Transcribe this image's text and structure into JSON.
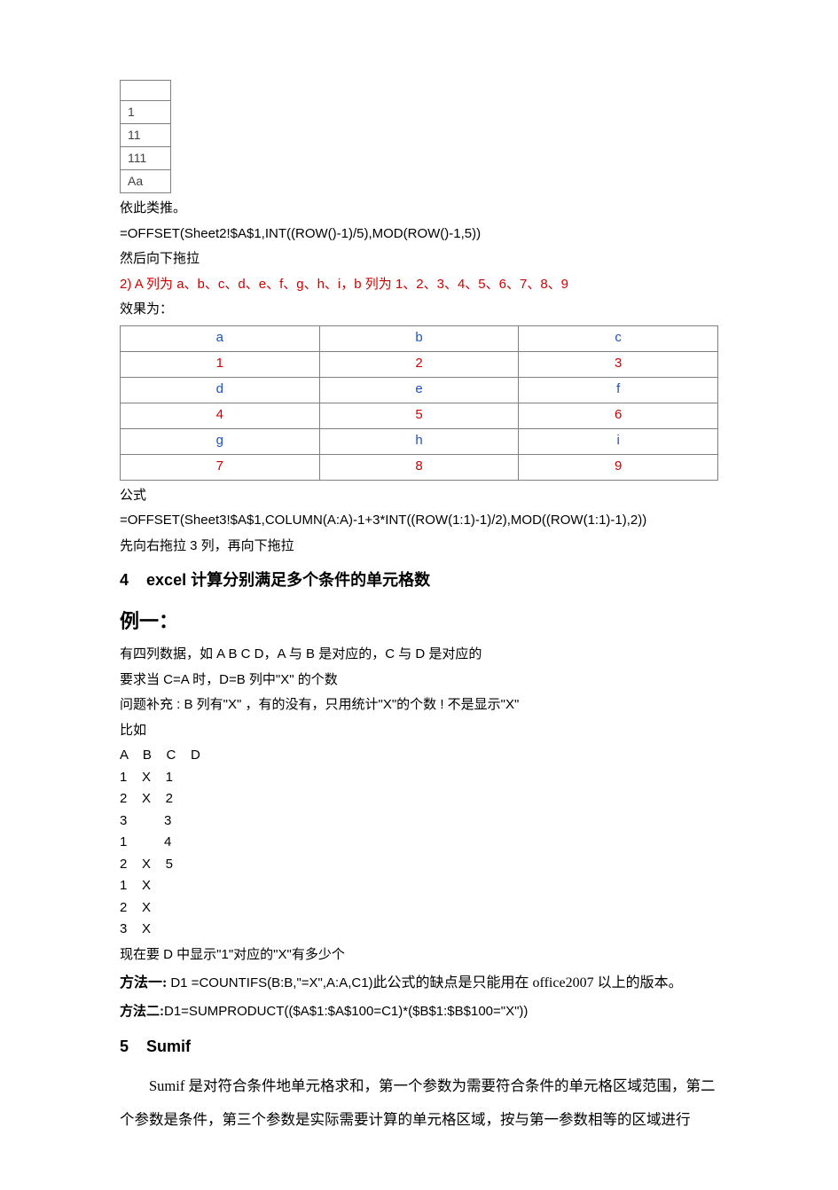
{
  "small_table": {
    "cells": [
      "1",
      "11",
      "111",
      "Aa"
    ],
    "border_color": "#808080",
    "text_color": "#404040"
  },
  "after_small_table": {
    "line1": "依此类推。",
    "formula": "=OFFSET(Sheet2!$A$1,INT((ROW()-1)/5),MOD(ROW()-1,5))",
    "line3": "然后向下拖拉"
  },
  "item2": {
    "prefix": "2)",
    "text": "A 列为 a、b、c、d、e、f、g、h、i，b 列为 1、2、3、4、5、6、7、8、9"
  },
  "effect_label": "效果为：",
  "wide_table": {
    "rows": [
      {
        "cells": [
          "a",
          "b",
          "c"
        ],
        "color": "blue"
      },
      {
        "cells": [
          "1",
          "2",
          "3"
        ],
        "color": "red"
      },
      {
        "cells": [
          "d",
          "e",
          "f"
        ],
        "color": "blue"
      },
      {
        "cells": [
          "4",
          "5",
          "6"
        ],
        "color": "red"
      },
      {
        "cells": [
          "g",
          "h",
          "i"
        ],
        "color": "blue"
      },
      {
        "cells": [
          "7",
          "8",
          "9"
        ],
        "color": "red"
      }
    ],
    "border_color": "#808080",
    "blue_color": "#2050c0",
    "red_color": "#d00000",
    "col_count": 3
  },
  "after_wide_table": {
    "line1": "公式",
    "formula": "=OFFSET(Sheet3!$A$1,COLUMN(A:A)-1+3*INT((ROW(1:1)-1)/2),MOD((ROW(1:1)-1),2))",
    "line3": "先向右拖拉 3 列，再向下拖拉"
  },
  "section4": {
    "number": "4",
    "title": "excel 计算分别满足多个条件的单元格数"
  },
  "example1": {
    "heading": "例一：",
    "p1": "有四列数据，如 A B C D，A 与 B 是对应的，C 与 D 是对应的",
    "p2": "要求当 C=A 时，D=B 列中\"X\" 的个数",
    "p3": "问题补充 : B 列有\"X\" ，有的没有，只用统计\"X\"的个数 ! 不是显示\"X\"",
    "p4": "比如",
    "header_line": "A    B    C    D",
    "data_rows": [
      "1    X    1",
      "2    X    2",
      "3          3",
      "1          4",
      "2    X    5",
      "1    X",
      "2    X",
      "3    X"
    ],
    "p_end": "现在要 D 中显示\"1\"对应的\"X\"有多少个"
  },
  "method1": {
    "label": "方法一:",
    "formula": "D1 =COUNTIFS(B:B,\"=X\",A:A,C1)",
    "tail": "此公式的缺点是只能用在 office2007 以上的版本。"
  },
  "method2": {
    "label": "方法二:",
    "formula": "D1=SUMPRODUCT(($A$1:$A$100=C1)*($B$1:$B$100=\"X\"))"
  },
  "section5": {
    "number": "5",
    "title": "Sumif",
    "body": "Sumif 是对符合条件地单元格求和，第一个参数为需要符合条件的单元格区域范围，第二个参数是条件，第三个参数是实际需要计算的单元格区域，按与第一参数相等的区域进行"
  },
  "colors": {
    "text": "#000000",
    "red": "#d00000",
    "background": "#ffffff"
  }
}
